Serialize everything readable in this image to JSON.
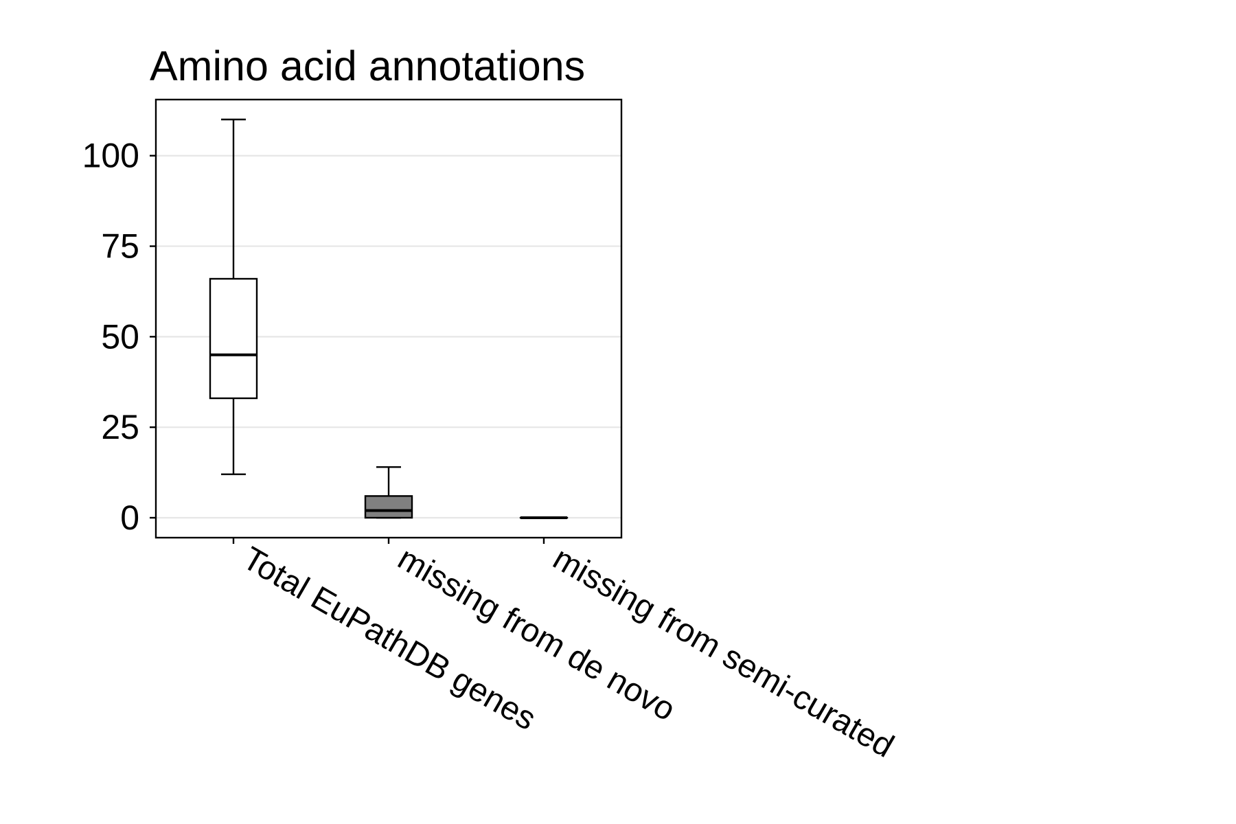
{
  "chart_data": {
    "type": "box",
    "title": "Amino acid annotations",
    "xlabel": "",
    "ylabel": "",
    "categories": [
      "Total EuPathDB genes",
      "missing from de novo",
      "missing from semi-curated"
    ],
    "boxes": [
      {
        "min": 12,
        "q1": 33,
        "median": 45,
        "q3": 66,
        "max": 110,
        "fill": "#ffffff"
      },
      {
        "min": 0,
        "q1": 0,
        "median": 2,
        "q3": 6,
        "max": 14,
        "fill": "#808080"
      },
      {
        "min": 0,
        "q1": 0,
        "median": 0,
        "q3": 0,
        "max": 0,
        "fill": "#808080"
      }
    ],
    "yticks": [
      0,
      25,
      50,
      75,
      100
    ],
    "ytick_labels": [
      "0",
      "25",
      "50",
      "75",
      "100"
    ],
    "ylim": [
      -5.5,
      115.5
    ],
    "grid": "horizontal",
    "legend": "none",
    "colors": {
      "grid": "#e6e6e6",
      "line": "#000000"
    }
  }
}
